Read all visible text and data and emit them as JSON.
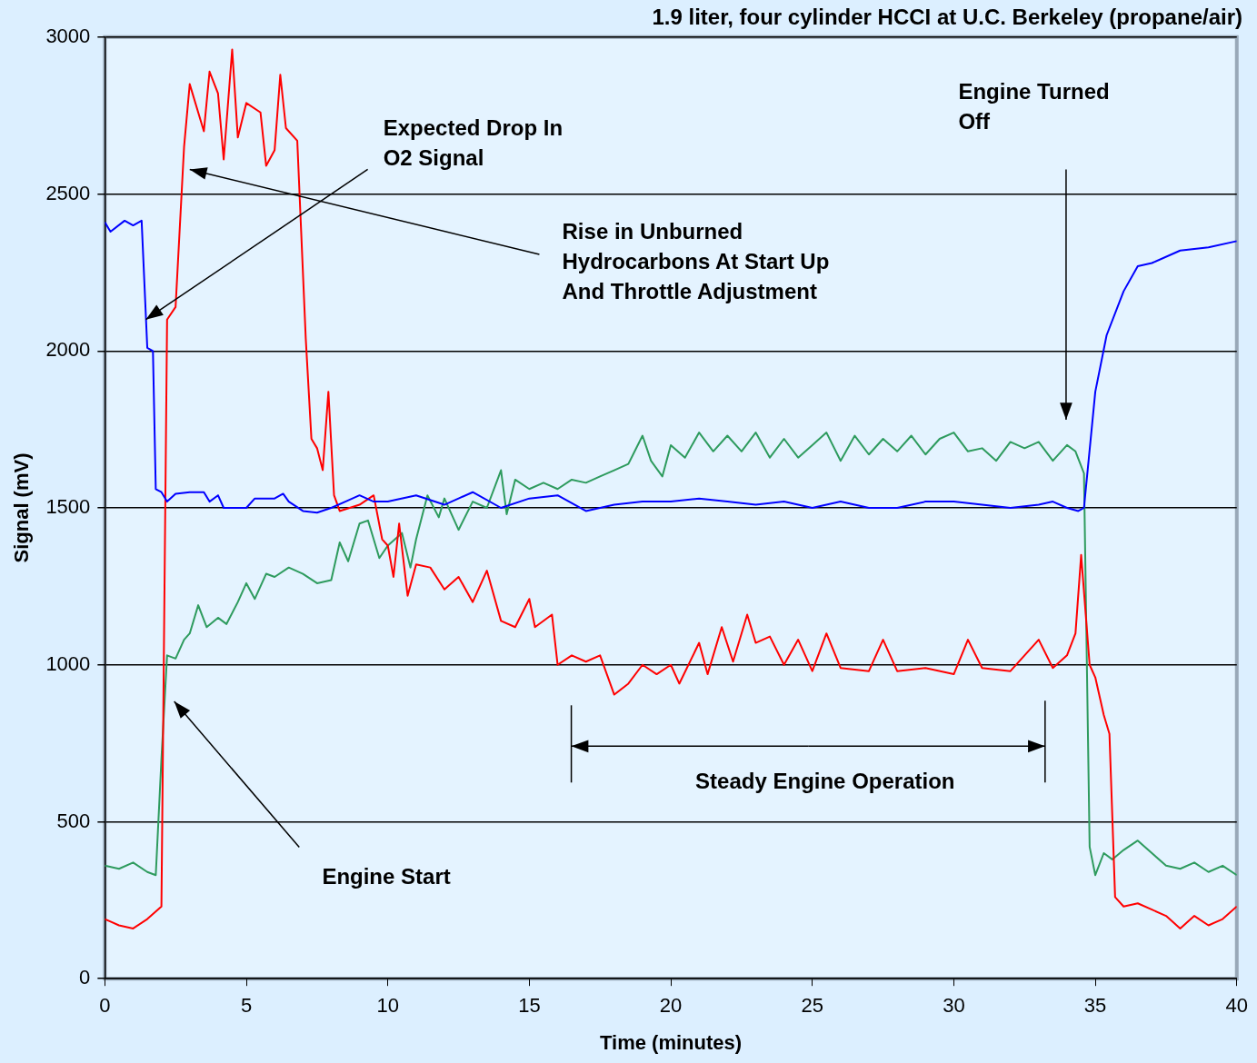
{
  "chart_data": {
    "type": "line",
    "title": "1.9 liter, four cylinder HCCI at U.C. Berkeley (propane/air)",
    "xlabel": "Time (minutes)",
    "ylabel": "Signal (mV)",
    "xlim": [
      0,
      40
    ],
    "xticks": [
      0,
      5,
      10,
      15,
      20,
      25,
      30,
      35,
      40
    ],
    "ylim": [
      0,
      3000
    ],
    "yticks": [
      0,
      500,
      1000,
      1500,
      2000,
      2500,
      3000
    ],
    "grid": "y",
    "legend": false,
    "marker": "none",
    "line_style": "solid",
    "series": [
      {
        "color": "#0000ff",
        "x": [
          0,
          0.2,
          0.7,
          1,
          1.3,
          1.5,
          1.7,
          1.8,
          2,
          2.2,
          2.5,
          3,
          3.5,
          3.7,
          4,
          4.2,
          5,
          5.3,
          6,
          6.3,
          6.5,
          7,
          7.5,
          8,
          8.5,
          9,
          9.5,
          10,
          11,
          12,
          12.5,
          13,
          14,
          15,
          16,
          17,
          18,
          19,
          20,
          21,
          22,
          23,
          24,
          25,
          26,
          27,
          28,
          29,
          30,
          31,
          32,
          33,
          33.5,
          34,
          34.4,
          34.6,
          35,
          35.4,
          36,
          36.5,
          37,
          38,
          39,
          40
        ],
        "values": [
          2410,
          2380,
          2415,
          2400,
          2415,
          2010,
          2000,
          1560,
          1550,
          1520,
          1545,
          1550,
          1550,
          1520,
          1540,
          1500,
          1500,
          1530,
          1530,
          1545,
          1520,
          1490,
          1485,
          1500,
          1520,
          1540,
          1520,
          1520,
          1540,
          1510,
          1530,
          1550,
          1500,
          1530,
          1540,
          1490,
          1510,
          1520,
          1520,
          1530,
          1520,
          1510,
          1520,
          1500,
          1520,
          1500,
          1500,
          1520,
          1520,
          1510,
          1500,
          1510,
          1520,
          1500,
          1490,
          1500,
          1870,
          2050,
          2190,
          2270,
          2280,
          2320,
          2330,
          2350
        ]
      },
      {
        "color": "#ff0000",
        "x": [
          0,
          0.5,
          1,
          1.5,
          2,
          2.2,
          2.5,
          2.8,
          3,
          3.5,
          3.7,
          4,
          4.2,
          4.5,
          4.7,
          5,
          5.5,
          5.7,
          6,
          6.2,
          6.4,
          6.8,
          7.1,
          7.3,
          7.5,
          7.7,
          7.9,
          8.1,
          8.3,
          9,
          9.5,
          9.8,
          10,
          10.2,
          10.4,
          10.7,
          11,
          11.5,
          12,
          12.5,
          13,
          13.5,
          14,
          14.5,
          15,
          15.2,
          15.8,
          16,
          16.5,
          17,
          17.5,
          18,
          18.5,
          19,
          19.5,
          20,
          20.3,
          21,
          21.3,
          21.8,
          22.2,
          22.7,
          23,
          23.5,
          24,
          24.5,
          25,
          25.5,
          26,
          27,
          27.5,
          28,
          29,
          30,
          30.5,
          31,
          32,
          33,
          33.5,
          34,
          34.3,
          34.5,
          34.8,
          35,
          35.3,
          35.5,
          35.7,
          36,
          36.5,
          37,
          37.5,
          38,
          38.5,
          39,
          39.5,
          40
        ],
        "values": [
          190,
          170,
          160,
          190,
          230,
          2100,
          2140,
          2650,
          2850,
          2700,
          2890,
          2820,
          2610,
          2960,
          2680,
          2790,
          2760,
          2590,
          2640,
          2880,
          2710,
          2670,
          2040,
          1720,
          1690,
          1620,
          1870,
          1540,
          1490,
          1510,
          1540,
          1400,
          1380,
          1280,
          1450,
          1220,
          1320,
          1310,
          1240,
          1280,
          1200,
          1300,
          1140,
          1120,
          1210,
          1120,
          1160,
          1000,
          1030,
          1010,
          1030,
          905,
          940,
          1000,
          970,
          1000,
          940,
          1070,
          970,
          1120,
          1010,
          1160,
          1070,
          1090,
          1000,
          1080,
          980,
          1100,
          990,
          980,
          1080,
          980,
          990,
          970,
          1080,
          990,
          980,
          1080,
          990,
          1030,
          1100,
          1350,
          1000,
          960,
          840,
          780,
          260,
          230,
          240,
          220,
          200,
          160,
          200,
          170,
          190,
          230
        ]
      },
      {
        "color": "#2e9b5e",
        "x": [
          0,
          0.5,
          1,
          1.5,
          1.8,
          2,
          2.2,
          2.5,
          2.8,
          3,
          3.3,
          3.6,
          4,
          4.3,
          4.7,
          5,
          5.3,
          5.7,
          6,
          6.5,
          7,
          7.5,
          8,
          8.3,
          8.6,
          9,
          9.3,
          9.7,
          10,
          10.5,
          10.8,
          11,
          11.4,
          11.8,
          12,
          12.5,
          13,
          13.5,
          14,
          14.2,
          14.5,
          15,
          15.5,
          16,
          16.5,
          17,
          17.5,
          18,
          18.5,
          19,
          19.3,
          19.7,
          20,
          20.5,
          21,
          21.5,
          22,
          22.5,
          23,
          23.5,
          24,
          24.5,
          25,
          25.5,
          26,
          26.5,
          27,
          27.5,
          28,
          28.5,
          29,
          29.5,
          30,
          30.5,
          31,
          31.5,
          32,
          32.5,
          33,
          33.5,
          34,
          34.3,
          34.6,
          34.8,
          35,
          35.3,
          35.6,
          36,
          36.5,
          37,
          37.5,
          38,
          38.5,
          39,
          39.5,
          40
        ],
        "values": [
          360,
          350,
          370,
          340,
          330,
          700,
          1030,
          1020,
          1080,
          1100,
          1190,
          1120,
          1150,
          1130,
          1200,
          1260,
          1210,
          1290,
          1280,
          1310,
          1290,
          1260,
          1270,
          1390,
          1330,
          1450,
          1460,
          1340,
          1380,
          1420,
          1310,
          1400,
          1540,
          1470,
          1530,
          1430,
          1520,
          1500,
          1620,
          1480,
          1590,
          1560,
          1580,
          1560,
          1590,
          1580,
          1600,
          1620,
          1640,
          1730,
          1650,
          1600,
          1700,
          1660,
          1740,
          1680,
          1730,
          1680,
          1740,
          1660,
          1720,
          1660,
          1700,
          1740,
          1650,
          1730,
          1670,
          1720,
          1680,
          1730,
          1670,
          1720,
          1740,
          1680,
          1690,
          1650,
          1710,
          1690,
          1710,
          1650,
          1700,
          1680,
          1610,
          420,
          330,
          400,
          380,
          410,
          440,
          400,
          360,
          350,
          370,
          340,
          360,
          330
        ]
      }
    ],
    "annotations": [
      {
        "text": "Expected Drop In\nO2 Signal",
        "x": 1.45,
        "y": 2100
      },
      "Rise in Unburned\nHydrocarbons At Start Up\nAnd Throttle Adjustment",
      "Engine Start",
      "Engine Turned\nOff",
      "Steady Engine Operation"
    ]
  }
}
